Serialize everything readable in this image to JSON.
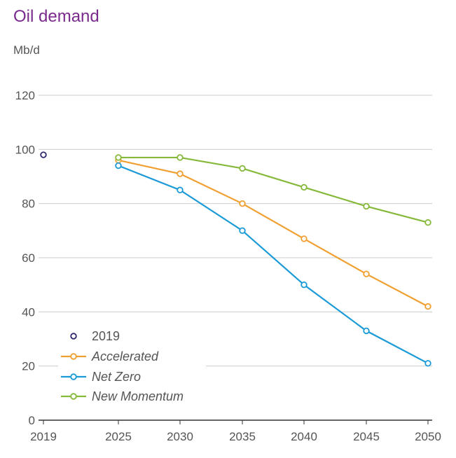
{
  "chart_data": {
    "type": "line",
    "title": "Oil demand",
    "ylabel": "Mb/d",
    "ylim": [
      0,
      120
    ],
    "yticks": [
      "0",
      "20",
      "40",
      "60",
      "80",
      "100",
      "120"
    ],
    "xticks": [
      "2019",
      "2025",
      "2030",
      "2035",
      "2040",
      "2045",
      "2050"
    ],
    "grid": true,
    "legend_position": "bottom-left",
    "series": [
      {
        "name": "2019",
        "style": "marker-only",
        "color": "#2d2a6e",
        "points": [
          {
            "x": 2019,
            "y": 98
          }
        ]
      },
      {
        "name": "Accelerated",
        "color": "#f0a030",
        "points": [
          {
            "x": 2025,
            "y": 96
          },
          {
            "x": 2030,
            "y": 91
          },
          {
            "x": 2035,
            "y": 80
          },
          {
            "x": 2040,
            "y": 67
          },
          {
            "x": 2045,
            "y": 54
          },
          {
            "x": 2050,
            "y": 42
          }
        ]
      },
      {
        "name": "Net Zero",
        "color": "#1a9ad6",
        "points": [
          {
            "x": 2025,
            "y": 94
          },
          {
            "x": 2030,
            "y": 85
          },
          {
            "x": 2035,
            "y": 70
          },
          {
            "x": 2040,
            "y": 50
          },
          {
            "x": 2045,
            "y": 33
          },
          {
            "x": 2050,
            "y": 21
          }
        ]
      },
      {
        "name": "New Momentum",
        "color": "#86b83a",
        "points": [
          {
            "x": 2025,
            "y": 97
          },
          {
            "x": 2030,
            "y": 97
          },
          {
            "x": 2035,
            "y": 93
          },
          {
            "x": 2040,
            "y": 86
          },
          {
            "x": 2045,
            "y": 79
          },
          {
            "x": 2050,
            "y": 73
          }
        ]
      }
    ]
  }
}
